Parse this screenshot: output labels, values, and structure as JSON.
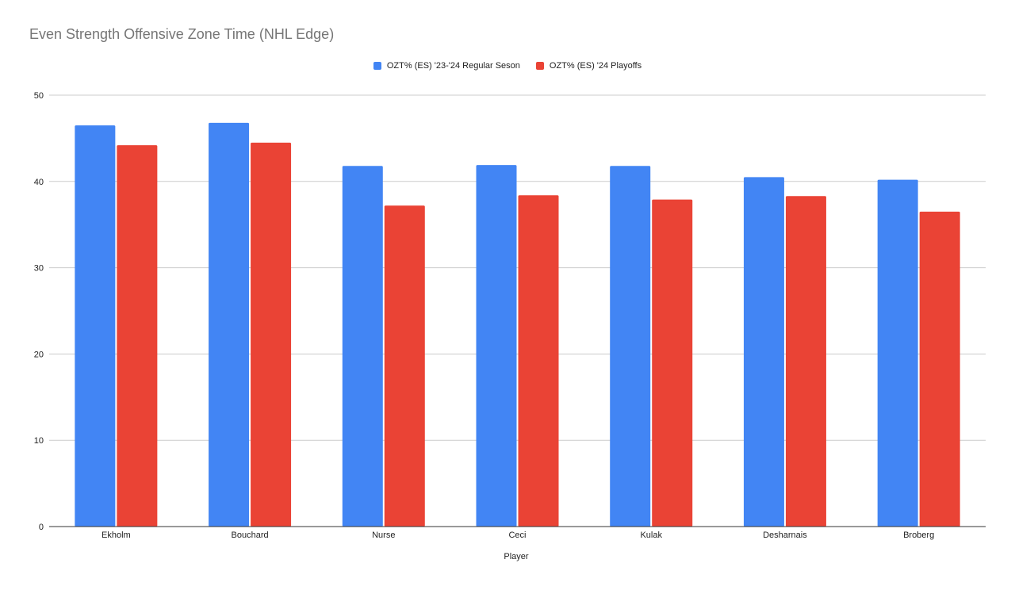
{
  "chart_data": {
    "type": "bar",
    "title": "Even Strength Offensive Zone Time (NHL Edge)",
    "xlabel": "Player",
    "ylabel": "",
    "ylim": [
      0,
      50
    ],
    "yticks": [
      0,
      10,
      20,
      30,
      40,
      50
    ],
    "grid": true,
    "legend_position": "top-center",
    "categories": [
      "Ekholm",
      "Bouchard",
      "Nurse",
      "Ceci",
      "Kulak",
      "Desharnais",
      "Broberg"
    ],
    "series": [
      {
        "name": "OZT% (ES) '23-'24 Regular Seson",
        "color": "#4285f4",
        "values": [
          46.5,
          46.8,
          41.8,
          41.9,
          41.8,
          40.5,
          40.2
        ]
      },
      {
        "name": "OZT% (ES) '24 Playoffs",
        "color": "#ea4335",
        "values": [
          44.2,
          44.5,
          37.2,
          38.4,
          37.9,
          38.3,
          36.5
        ]
      }
    ]
  }
}
